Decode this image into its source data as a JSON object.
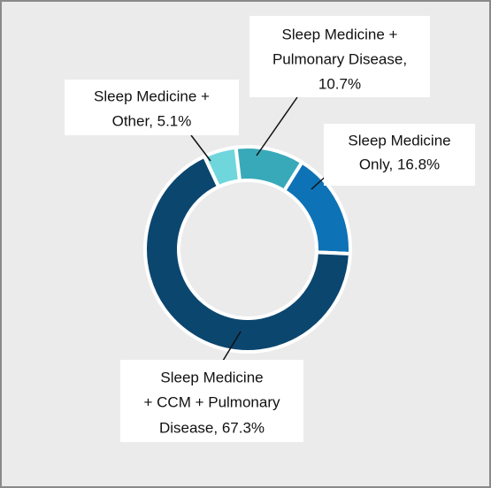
{
  "chart_data": {
    "type": "pie",
    "values": [
      5.1,
      10.7,
      16.8,
      67.3
    ],
    "value_labels": [
      [
        "Sleep Medicine +",
        "Other, 5.1%"
      ],
      [
        "Sleep Medicine +",
        "Pulmonary Disease,",
        "10.7%"
      ],
      [
        "Sleep Medicine",
        "Only, 16.8%"
      ],
      [
        "Sleep Medicine",
        "+ CCM + Pulmonary",
        "Disease, 67.3%"
      ]
    ],
    "colors": [
      "#6fd6dc",
      "#38a9b9",
      "#0e72b6",
      "#0b466f"
    ],
    "hole": true
  }
}
